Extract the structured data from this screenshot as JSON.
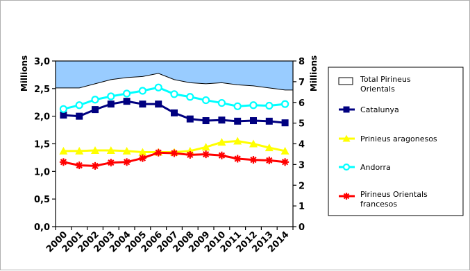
{
  "chart_data": {
    "type": "line",
    "categories": [
      "2000",
      "2001",
      "2002",
      "2003",
      "2004",
      "2005",
      "2006",
      "2007",
      "2008",
      "2009",
      "2010",
      "2011",
      "2012",
      "2013",
      "2014"
    ],
    "left_axis": {
      "label": "Millions",
      "ylim": [
        0,
        3.0
      ],
      "ticks": [
        "0,0",
        "0,5",
        "1,0",
        "1,5",
        "2,0",
        "2,5",
        "3,0"
      ]
    },
    "right_axis": {
      "label": "Millions",
      "ylim": [
        0,
        8
      ],
      "ticks": [
        "0",
        "1",
        "2",
        "3",
        "4",
        "5",
        "6",
        "7",
        "8"
      ]
    },
    "grid": false,
    "legend_position": "right",
    "series": [
      {
        "name": "Total Pirineus Orientals",
        "type": "area",
        "axis": "right",
        "fill": "#99ccff",
        "color": "#000000",
        "values": [
          6.7,
          6.7,
          6.9,
          7.1,
          7.2,
          7.25,
          7.4,
          7.1,
          6.95,
          6.9,
          6.95,
          6.85,
          6.8,
          6.7,
          6.6
        ]
      },
      {
        "name": "Catalunya",
        "type": "line",
        "axis": "left",
        "marker": "square",
        "color": "#000080",
        "values": [
          2.02,
          2.0,
          2.12,
          2.22,
          2.27,
          2.22,
          2.22,
          2.06,
          1.95,
          1.92,
          1.93,
          1.91,
          1.92,
          1.91,
          1.88
        ]
      },
      {
        "name": "Prinieus aragonesos",
        "type": "line",
        "axis": "left",
        "marker": "triangle",
        "color": "#ffff00",
        "values": [
          1.37,
          1.37,
          1.38,
          1.38,
          1.37,
          1.35,
          1.35,
          1.35,
          1.37,
          1.44,
          1.53,
          1.55,
          1.5,
          1.43,
          1.37
        ]
      },
      {
        "name": "Andorra",
        "type": "line",
        "axis": "left",
        "marker": "circle",
        "color": "#00ffff",
        "values": [
          2.13,
          2.2,
          2.3,
          2.36,
          2.41,
          2.46,
          2.52,
          2.4,
          2.35,
          2.29,
          2.24,
          2.18,
          2.2,
          2.19,
          2.22
        ]
      },
      {
        "name": "Pirineus Orientals francesos",
        "type": "line",
        "axis": "left",
        "marker": "star",
        "color": "#ff0000",
        "values": [
          1.17,
          1.11,
          1.1,
          1.16,
          1.17,
          1.24,
          1.34,
          1.33,
          1.3,
          1.31,
          1.29,
          1.23,
          1.21,
          1.2,
          1.17
        ]
      }
    ]
  }
}
